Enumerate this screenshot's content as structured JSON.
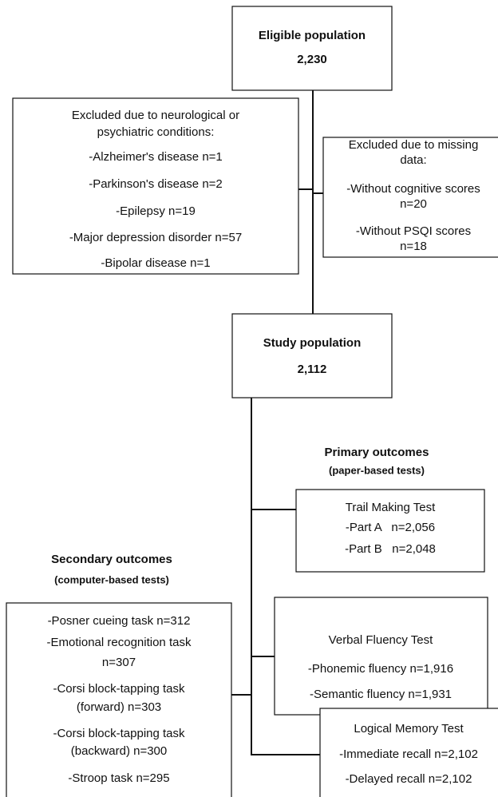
{
  "nodes": [
    {
      "title": "Eligible population",
      "count": "2,230"
    },
    {
      "title": "Excluded due to neurological or",
      "lines": [
        "psychiatric conditions:",
        "-Alzheimer's disease n=1",
        "-Parkinson's disease n=2",
        "-Epilepsy n=19",
        "-Major depression disorder n=57",
        "-Bipolar disease n=1"
      ]
    },
    {
      "title": "Excluded due to missing",
      "lines": [
        "data:",
        "-Without cognitive scores",
        "n=20",
        "-Without PSQI scores",
        "n=18"
      ]
    },
    {
      "title": "Study population",
      "count": "2,112"
    },
    {
      "title": "Trail Making Test",
      "lines": [
        "-Part A   n=2,056",
        "-Part B   n=2,048"
      ]
    },
    {
      "title": "Verbal Fluency Test",
      "lines": [
        "-Phonemic fluency n=1,916",
        "-Semantic fluency n=1,931"
      ]
    },
    {
      "title": "Logical Memory Test",
      "lines": [
        "-Immediate recall n=2,102",
        "-Delayed recall n=2,102"
      ]
    },
    {
      "title": "-Posner cueing task n=312",
      "lines": [
        "-Emotional recognition task",
        "n=307",
        "-Corsi block-tapping task",
        "(forward) n=303",
        "-Corsi block-tapping task",
        "(backward) n=300",
        "-Stroop task n=295"
      ]
    }
  ],
  "labels": {
    "primary": "Primary outcomes",
    "primary_sub": "(paper-based tests)",
    "secondary": "Secondary outcomes",
    "secondary_sub": "(computer-based tests)"
  }
}
